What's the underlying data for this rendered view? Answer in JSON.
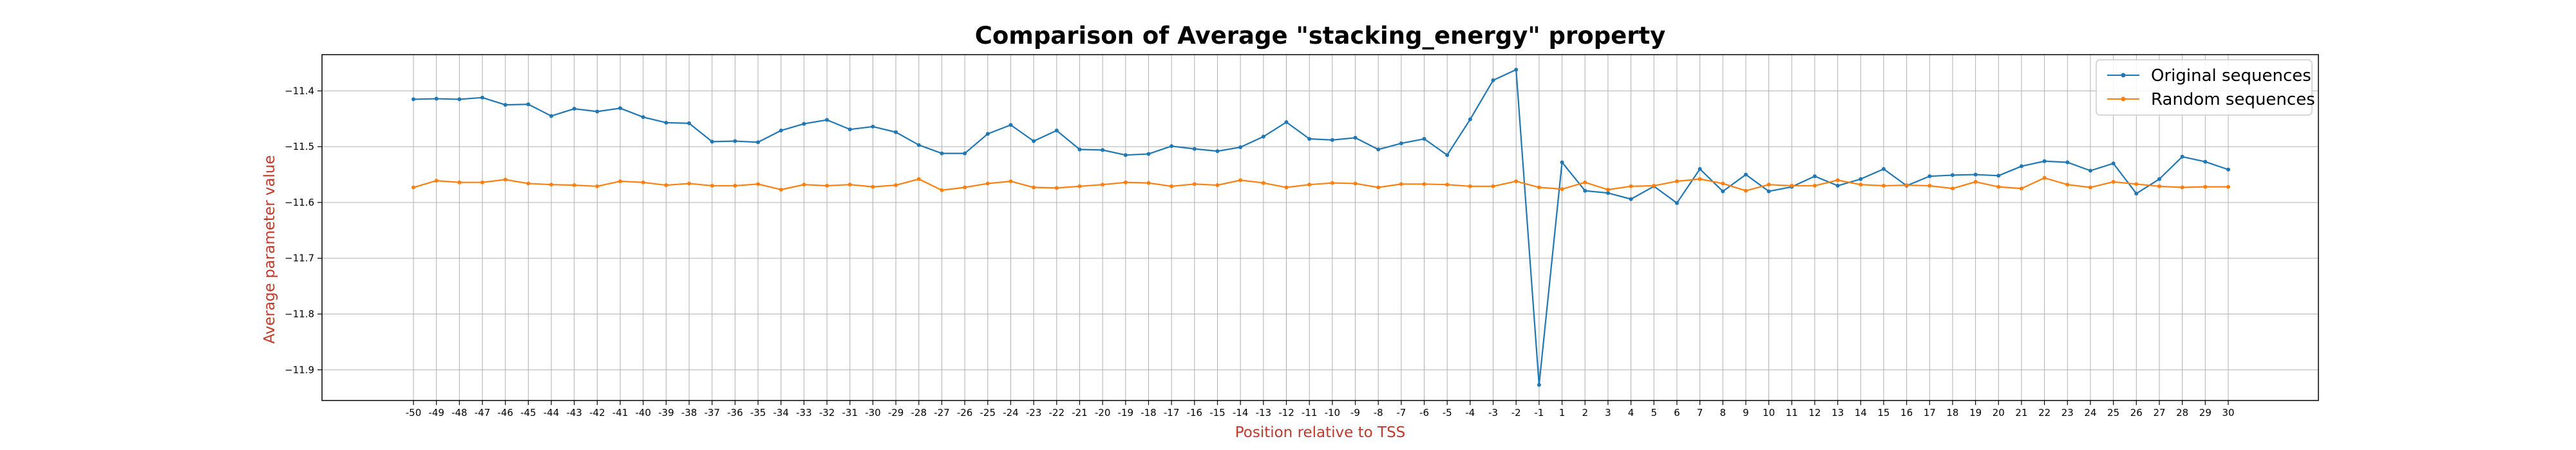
{
  "chart_data": {
    "type": "line",
    "title": "Comparison of Average \"stacking_energy\" property",
    "xlabel": "Position relative to TSS",
    "ylabel": "Average parameter value",
    "x": [
      "-50",
      "-49",
      "-48",
      "-47",
      "-46",
      "-45",
      "-44",
      "-43",
      "-42",
      "-41",
      "-40",
      "-39",
      "-38",
      "-37",
      "-36",
      "-35",
      "-34",
      "-33",
      "-32",
      "-31",
      "-30",
      "-29",
      "-28",
      "-27",
      "-26",
      "-25",
      "-24",
      "-23",
      "-22",
      "-21",
      "-20",
      "-19",
      "-18",
      "-17",
      "-16",
      "-15",
      "-14",
      "-13",
      "-12",
      "-11",
      "-10",
      "-9",
      "-8",
      "-7",
      "-6",
      "-5",
      "-4",
      "-3",
      "-2",
      "-1",
      "1",
      "2",
      "3",
      "4",
      "5",
      "6",
      "7",
      "8",
      "9",
      "10",
      "11",
      "12",
      "13",
      "14",
      "15",
      "16",
      "17",
      "18",
      "19",
      "20",
      "21",
      "22",
      "23",
      "24",
      "25",
      "26",
      "27",
      "28",
      "29",
      "30"
    ],
    "ylim": [
      -11.955,
      -11.335
    ],
    "yticks": [
      -11.4,
      -11.5,
      -11.6,
      -11.7,
      -11.8,
      -11.9
    ],
    "grid": true,
    "legend_position": "top-right",
    "series": [
      {
        "name": "Original sequences",
        "color": "#1f77b4",
        "values": [
          -11.415,
          -11.414,
          -11.415,
          -11.412,
          -11.425,
          -11.424,
          -11.445,
          -11.432,
          -11.437,
          -11.431,
          -11.447,
          -11.457,
          -11.458,
          -11.491,
          -11.49,
          -11.492,
          -11.471,
          -11.459,
          -11.452,
          -11.469,
          -11.464,
          -11.474,
          -11.497,
          -11.512,
          -11.512,
          -11.477,
          -11.461,
          -11.49,
          -11.471,
          -11.505,
          -11.506,
          -11.515,
          -11.513,
          -11.499,
          -11.504,
          -11.508,
          -11.501,
          -11.482,
          -11.456,
          -11.486,
          -11.488,
          -11.484,
          -11.505,
          -11.494,
          -11.486,
          -11.515,
          -11.451,
          -11.381,
          -11.362,
          -11.927,
          -11.528,
          -11.579,
          -11.583,
          -11.594,
          -11.571,
          -11.601,
          -11.54,
          -11.58,
          -11.55,
          -11.58,
          -11.572,
          -11.553,
          -11.57,
          -11.558,
          -11.54,
          -11.57,
          -11.553,
          -11.551,
          -11.55,
          -11.552,
          -11.535,
          -11.526,
          -11.528,
          -11.543,
          -11.53,
          -11.584,
          -11.558,
          -11.518,
          -11.527,
          -11.541
        ]
      },
      {
        "name": "Random sequences",
        "color": "#ff7f0e",
        "values": [
          -11.573,
          -11.561,
          -11.564,
          -11.564,
          -11.559,
          -11.566,
          -11.568,
          -11.569,
          -11.571,
          -11.562,
          -11.564,
          -11.569,
          -11.566,
          -11.57,
          -11.57,
          -11.567,
          -11.577,
          -11.568,
          -11.57,
          -11.568,
          -11.572,
          -11.569,
          -11.558,
          -11.578,
          -11.573,
          -11.566,
          -11.562,
          -11.573,
          -11.574,
          -11.571,
          -11.568,
          -11.564,
          -11.565,
          -11.571,
          -11.567,
          -11.569,
          -11.56,
          -11.565,
          -11.573,
          -11.568,
          -11.565,
          -11.566,
          -11.573,
          -11.567,
          -11.567,
          -11.568,
          -11.571,
          -11.571,
          -11.562,
          -11.573,
          -11.576,
          -11.564,
          -11.577,
          -11.571,
          -11.57,
          -11.562,
          -11.558,
          -11.566,
          -11.579,
          -11.568,
          -11.57,
          -11.57,
          -11.56,
          -11.568,
          -11.57,
          -11.569,
          -11.57,
          -11.575,
          -11.563,
          -11.572,
          -11.575,
          -11.556,
          -11.568,
          -11.573,
          -11.563,
          -11.567,
          -11.571,
          -11.573,
          -11.572,
          -11.572
        ]
      }
    ]
  }
}
